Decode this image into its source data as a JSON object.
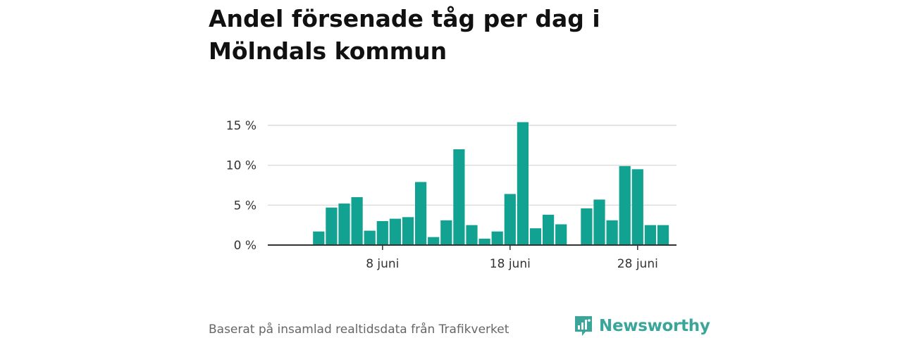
{
  "chart_data": {
    "type": "bar",
    "title": "Andel försenade tåg per dag i Mölndals kommun",
    "xlabel": "",
    "ylabel": "",
    "y_ticks": [
      "0 %",
      "5 %",
      "10 %",
      "15 %"
    ],
    "y_tick_values": [
      0,
      5,
      10,
      15
    ],
    "ylim": [
      0,
      15.9
    ],
    "x_ticks": [
      {
        "day": 8,
        "label": "8 juni"
      },
      {
        "day": 18,
        "label": "18 juni"
      },
      {
        "day": 28,
        "label": "28 juni"
      }
    ],
    "xlim_days": [
      0,
      31
    ],
    "days": [
      1,
      2,
      3,
      4,
      5,
      6,
      7,
      8,
      9,
      10,
      11,
      12,
      13,
      14,
      15,
      16,
      17,
      18,
      19,
      20,
      21,
      22,
      23,
      24,
      25,
      26,
      27,
      28,
      29,
      30
    ],
    "values": [
      null,
      null,
      1.7,
      4.7,
      5.2,
      6.0,
      1.8,
      3.0,
      3.3,
      3.5,
      7.9,
      1.0,
      3.1,
      12.0,
      2.5,
      0.8,
      1.7,
      6.4,
      15.4,
      2.1,
      3.8,
      2.6,
      null,
      4.6,
      5.7,
      3.1,
      9.9,
      9.5,
      2.5,
      2.5
    ],
    "bar_color": "#11a291",
    "grid": true
  },
  "footer": {
    "source": "Baserat på insamlad realtidsdata från Trafikverket"
  },
  "logo": {
    "text": "Newsworthy",
    "icon": "newsworthy-logo-icon",
    "color": "#3aa69a"
  }
}
